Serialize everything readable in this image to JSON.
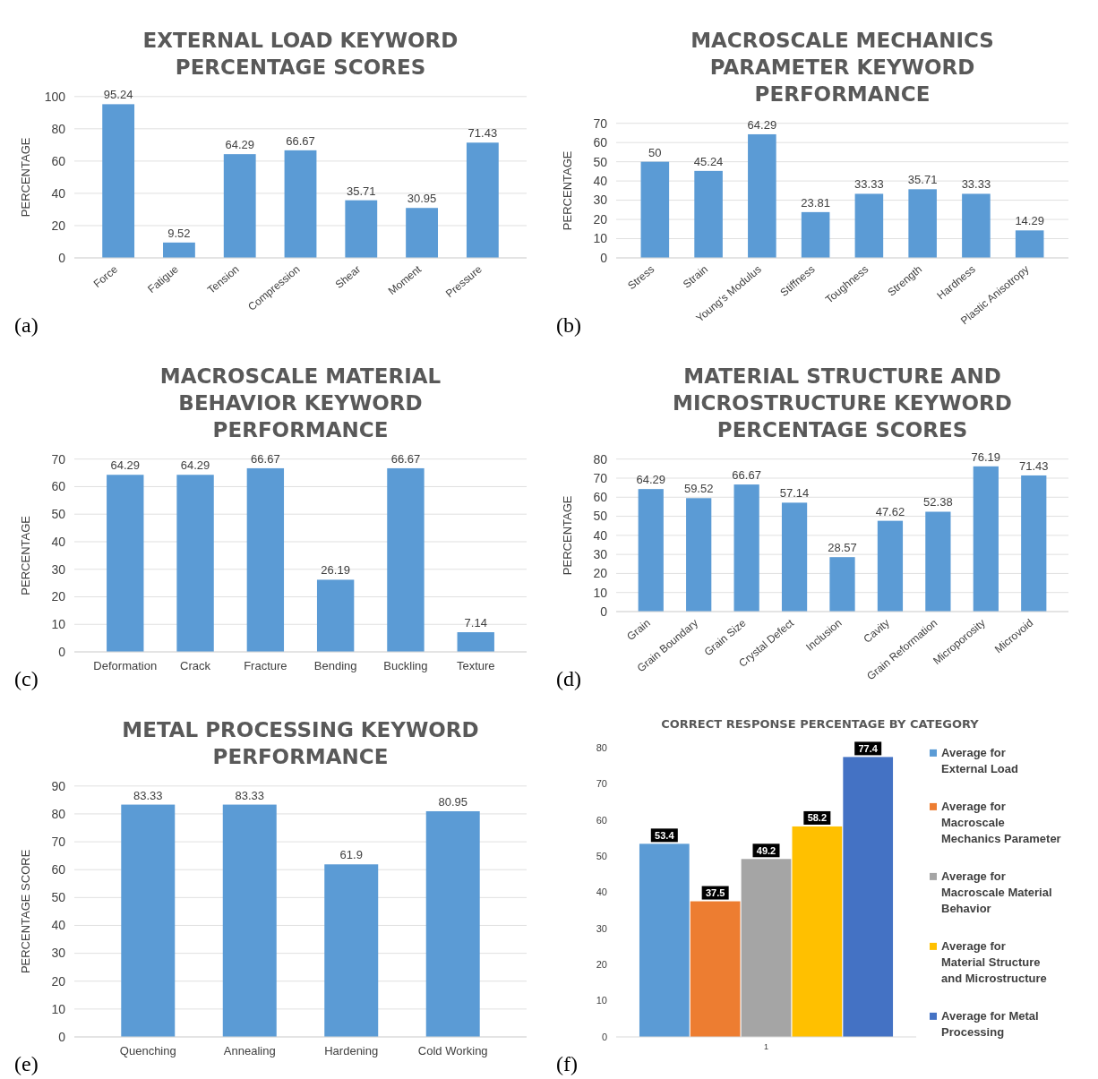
{
  "chart_data": [
    {
      "type": "bar",
      "title": "EXTERNAL LOAD KEYWORD PERCENTAGE SCORES",
      "ylabel": "PERCENTAGE",
      "categories": [
        "Force",
        "Fatigue",
        "Tension",
        "Compression",
        "Shear",
        "Moment",
        "Pressure"
      ],
      "values": [
        95.24,
        9.52,
        64.29,
        66.67,
        35.71,
        30.95,
        71.43
      ],
      "color": "#5b9bd5",
      "ylim": [
        0,
        100
      ],
      "yticks": [
        0,
        20,
        40,
        60,
        80,
        100
      ],
      "grid": "y",
      "data_labels": true,
      "annotations": [
        "(a)"
      ]
    },
    {
      "type": "bar",
      "title": "MACROSCALE MECHANICS PARAMETER KEYWORD PERFORMANCE",
      "ylabel": "PERCENTAGE",
      "categories": [
        "Stress",
        "Strain",
        "Young's Modulus",
        "Stiffness",
        "Toughness",
        "Strength",
        "Hardness",
        "Plastic Anisotropy"
      ],
      "values": [
        50,
        45.24,
        64.29,
        23.81,
        33.33,
        35.71,
        33.33,
        14.29
      ],
      "color": "#5b9bd5",
      "ylim": [
        0,
        70
      ],
      "yticks": [
        0,
        10,
        20,
        30,
        40,
        50,
        60,
        70
      ],
      "grid": "y",
      "data_labels": true,
      "annotations": [
        "(b)"
      ]
    },
    {
      "type": "bar",
      "title": "MACROSCALE MATERIAL BEHAVIOR KEYWORD PERFORMANCE",
      "ylabel": "PERCENTAGE",
      "categories": [
        "Deformation",
        "Crack",
        "Fracture",
        "Bending",
        "Buckling",
        "Texture"
      ],
      "values": [
        64.29,
        64.29,
        66.67,
        26.19,
        66.67,
        7.14
      ],
      "color": "#5b9bd5",
      "ylim": [
        0,
        70
      ],
      "yticks": [
        0,
        10,
        20,
        30,
        40,
        50,
        60,
        70
      ],
      "grid": "y",
      "data_labels": true,
      "annotations": [
        "(c)"
      ]
    },
    {
      "type": "bar",
      "title": "MATERIAL STRUCTURE AND MICROSTRUCTURE KEYWORD PERCENTAGE SCORES",
      "ylabel": "PERCENTAGE",
      "categories": [
        "Grain",
        "Grain Boundary",
        "Grain Size",
        "Crystal Defect",
        "Inclusion",
        "Cavity",
        "Grain Reformation",
        "Microporosity",
        "Microvoid"
      ],
      "values": [
        64.29,
        59.52,
        66.67,
        57.14,
        28.57,
        47.62,
        52.38,
        76.19,
        71.43
      ],
      "color": "#5b9bd5",
      "ylim": [
        0,
        80
      ],
      "yticks": [
        0,
        10,
        20,
        30,
        40,
        50,
        60,
        70,
        80
      ],
      "grid": "y",
      "data_labels": true,
      "annotations": [
        "(d)"
      ]
    },
    {
      "type": "bar",
      "title": "METAL PROCESSING KEYWORD PERFORMANCE",
      "ylabel": "PERCENTAGE SCORE",
      "categories": [
        "Quenching",
        "Annealing",
        "Hardening",
        "Cold Working"
      ],
      "values": [
        83.33,
        83.33,
        61.9,
        80.95
      ],
      "color": "#5b9bd5",
      "ylim": [
        0,
        90
      ],
      "yticks": [
        0,
        10,
        20,
        30,
        40,
        50,
        60,
        70,
        80,
        90
      ],
      "grid": "y",
      "data_labels": true,
      "annotations": [
        "(e)"
      ]
    },
    {
      "type": "bar",
      "title": "CORRECT RESPONSE PERCENTAGE BY CATEGORY",
      "categories": [
        "1"
      ],
      "series": [
        {
          "name": "Average for External Load",
          "color": "#5b9bd5",
          "values": [
            53.4
          ]
        },
        {
          "name": "Average for Macroscale Mechanics Parameter",
          "color": "#ed7d31",
          "values": [
            37.5
          ]
        },
        {
          "name": "Average for Macroscale Material Behavior",
          "color": "#a5a5a5",
          "values": [
            49.2
          ]
        },
        {
          "name": "Average for Material Structure and Microstructure",
          "color": "#ffc000",
          "values": [
            58.2
          ]
        },
        {
          "name": "Average for Metal Processing",
          "color": "#4472c4",
          "values": [
            77.4
          ]
        }
      ],
      "ylim": [
        0,
        80
      ],
      "yticks": [
        0,
        10,
        20,
        30,
        40,
        50,
        60,
        70,
        80
      ],
      "legend": "right",
      "data_labels": true,
      "annotations": [
        "(f)"
      ]
    }
  ]
}
